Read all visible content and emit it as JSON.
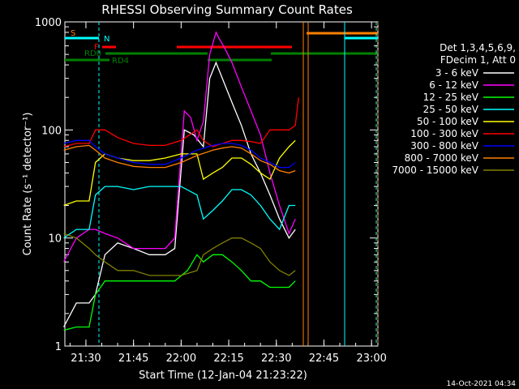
{
  "chart_data": {
    "type": "line",
    "title": "RHESSI Observing Summary Count Rates",
    "xlabel": "Start Time (12-Jan-04 21:23:22)",
    "ylabel": "Count Rate (s⁻¹ detector⁻¹)",
    "yscale": "log",
    "ylim": [
      1,
      1000
    ],
    "xlim": [
      "21:23:22",
      "23:02:00"
    ],
    "x_tick_labels": [
      "21:30",
      "21:45",
      "22:00",
      "22:15",
      "22:30",
      "22:45",
      "23:00"
    ],
    "y_tick_labels": [
      "1",
      "10",
      "100",
      "1000"
    ],
    "legend_header": [
      "Det 1,3,4,5,6,9,",
      "FDecim 1, Att 0"
    ],
    "legend_position": "right",
    "flag_labels": {
      "s": "S",
      "n": "N",
      "f": "F",
      "rd0": "RD0",
      "rd4": "RD4"
    },
    "flag_colors": {
      "s": "#ff8000",
      "n": "#00ffff",
      "f": "#ff0000",
      "rd0": "#008000",
      "rd4": "#008000"
    },
    "series": [
      {
        "name": "3 - 6 keV",
        "color": "#ffffff",
        "x": [
          "21:23",
          "21:27",
          "21:31",
          "21:33",
          "21:36",
          "21:40",
          "21:45",
          "21:50",
          "21:55",
          "21:58",
          "22:01",
          "22:04",
          "22:07",
          "22:09",
          "22:11",
          "22:13",
          "22:16",
          "22:19",
          "22:22",
          "22:25",
          "22:28",
          "22:31",
          "22:34",
          "22:36"
        ],
        "values": [
          1.5,
          2.5,
          2.5,
          3,
          7,
          9,
          8,
          7,
          7,
          8,
          100,
          90,
          70,
          300,
          420,
          300,
          180,
          110,
          60,
          40,
          25,
          15,
          10,
          12
        ]
      },
      {
        "name": "6 - 12 keV",
        "color": "#ff00ff",
        "x": [
          "21:23",
          "21:27",
          "21:31",
          "21:33",
          "21:36",
          "21:40",
          "21:45",
          "21:50",
          "21:55",
          "21:58",
          "22:01",
          "22:03",
          "22:05",
          "22:07",
          "22:09",
          "22:11",
          "22:12",
          "22:14",
          "22:16",
          "22:19",
          "22:22",
          "22:25",
          "22:28",
          "22:31",
          "22:34",
          "22:36"
        ],
        "values": [
          6,
          10,
          12,
          12,
          11,
          10,
          8,
          8,
          8,
          10,
          150,
          130,
          80,
          120,
          500,
          800,
          700,
          550,
          420,
          250,
          150,
          90,
          40,
          20,
          11,
          15
        ]
      },
      {
        "name": "12 - 25 keV",
        "color": "#00ff00",
        "x": [
          "21:23",
          "21:27",
          "21:31",
          "21:33",
          "21:36",
          "21:40",
          "21:45",
          "21:50",
          "21:55",
          "21:58",
          "22:02",
          "22:05",
          "22:07",
          "22:10",
          "22:13",
          "22:16",
          "22:19",
          "22:22",
          "22:25",
          "22:28",
          "22:31",
          "22:34",
          "22:36"
        ],
        "values": [
          1.4,
          1.5,
          1.5,
          3,
          4,
          4,
          4,
          4,
          4,
          4,
          5,
          7,
          6,
          7,
          7,
          6,
          5,
          4,
          4,
          3.5,
          3.5,
          3.5,
          4
        ]
      },
      {
        "name": "25 - 50 keV",
        "color": "#00ffff",
        "x": [
          "21:23",
          "21:27",
          "21:31",
          "21:33",
          "21:36",
          "21:40",
          "21:45",
          "21:50",
          "21:55",
          "22:00",
          "22:05",
          "22:07",
          "22:10",
          "22:13",
          "22:16",
          "22:19",
          "22:22",
          "22:25",
          "22:28",
          "22:31",
          "22:34",
          "22:36"
        ],
        "values": [
          10,
          12,
          12,
          25,
          30,
          30,
          28,
          30,
          30,
          30,
          25,
          15,
          18,
          22,
          28,
          28,
          25,
          20,
          15,
          12,
          20,
          20
        ]
      },
      {
        "name": "50 - 100 keV",
        "color": "#ffff00",
        "x": [
          "21:23",
          "21:27",
          "21:31",
          "21:33",
          "21:36",
          "21:40",
          "21:45",
          "21:50",
          "21:55",
          "22:00",
          "22:05",
          "22:07",
          "22:10",
          "22:13",
          "22:16",
          "22:19",
          "22:22",
          "22:25",
          "22:28",
          "22:31",
          "22:34",
          "22:36"
        ],
        "values": [
          20,
          22,
          22,
          50,
          60,
          55,
          52,
          52,
          55,
          60,
          60,
          35,
          40,
          45,
          55,
          55,
          48,
          40,
          35,
          55,
          70,
          80
        ]
      },
      {
        "name": "100 - 300 keV",
        "color": "#ff0000",
        "x": [
          "21:23",
          "21:27",
          "21:31",
          "21:33",
          "21:36",
          "21:40",
          "21:45",
          "21:50",
          "21:55",
          "22:00",
          "22:05",
          "22:07",
          "22:10",
          "22:13",
          "22:16",
          "22:19",
          "22:22",
          "22:25",
          "22:28",
          "22:31",
          "22:34",
          "22:36",
          "22:37"
        ],
        "values": [
          70,
          75,
          75,
          100,
          100,
          85,
          75,
          72,
          72,
          80,
          100,
          80,
          70,
          75,
          80,
          80,
          78,
          75,
          100,
          100,
          100,
          110,
          200
        ]
      },
      {
        "name": "300 - 800 keV",
        "color": "#0000ff",
        "x": [
          "21:23",
          "21:27",
          "21:31",
          "21:33",
          "21:36",
          "21:40",
          "21:45",
          "21:50",
          "21:55",
          "22:00",
          "22:05",
          "22:10",
          "22:13",
          "22:16",
          "22:19",
          "22:22",
          "22:25",
          "22:28",
          "22:31",
          "22:34",
          "22:36"
        ],
        "values": [
          75,
          80,
          80,
          70,
          60,
          55,
          50,
          48,
          48,
          55,
          65,
          72,
          75,
          75,
          72,
          65,
          55,
          50,
          45,
          45,
          50
        ]
      },
      {
        "name": "800 - 7000 keV",
        "color": "#ff8000",
        "x": [
          "21:23",
          "21:27",
          "21:31",
          "21:33",
          "21:36",
          "21:40",
          "21:45",
          "21:50",
          "21:55",
          "22:00",
          "22:05",
          "22:10",
          "22:13",
          "22:16",
          "22:19",
          "22:22",
          "22:25",
          "22:28",
          "22:31",
          "22:34",
          "22:36"
        ],
        "values": [
          65,
          70,
          72,
          65,
          55,
          50,
          46,
          45,
          45,
          50,
          58,
          65,
          68,
          70,
          68,
          60,
          52,
          48,
          42,
          40,
          42
        ]
      },
      {
        "name": "7000 - 15000 keV",
        "color": "#808000",
        "x": [
          "21:23",
          "21:27",
          "21:31",
          "21:33",
          "21:36",
          "21:40",
          "21:45",
          "21:50",
          "21:55",
          "22:00",
          "22:05",
          "22:07",
          "22:10",
          "22:13",
          "22:16",
          "22:19",
          "22:22",
          "22:25",
          "22:28",
          "22:31",
          "22:34",
          "22:36"
        ],
        "values": [
          11,
          10,
          8,
          7,
          6,
          5,
          5,
          4.5,
          4.5,
          4.5,
          5,
          7,
          8,
          9,
          10,
          10,
          9,
          8,
          6,
          5,
          4.5,
          5
        ]
      }
    ]
  },
  "footer_date": "14-Oct-2021 04:34"
}
